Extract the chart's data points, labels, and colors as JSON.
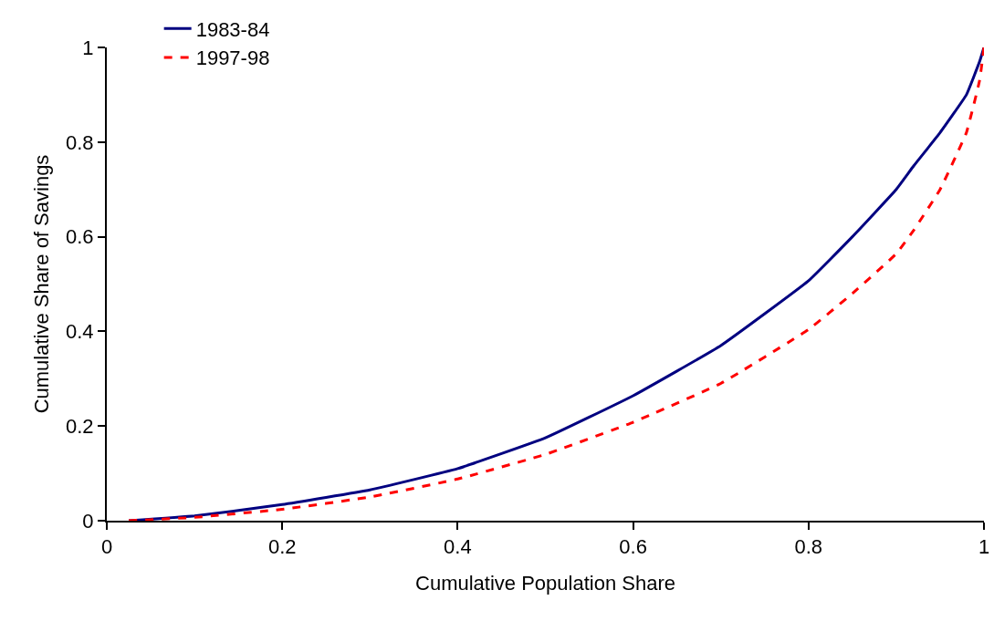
{
  "chart_data": {
    "type": "line",
    "xlabel": "Cumulative Population Share",
    "ylabel": "Cumulative Share of Savings",
    "x": [
      0.025,
      0.1,
      0.2,
      0.3,
      0.4,
      0.5,
      0.6,
      0.7,
      0.8,
      0.85,
      0.9,
      0.92,
      0.95,
      0.98,
      0.995,
      1
    ],
    "series": [
      {
        "name": "1983-84",
        "color": "#000080",
        "line_style": "solid",
        "values": [
          0,
          0.01,
          0.034,
          0.065,
          0.11,
          0.175,
          0.264,
          0.37,
          0.507,
          0.6,
          0.7,
          0.75,
          0.82,
          0.9,
          0.97,
          1
        ]
      },
      {
        "name": "1997-98",
        "color": "#ff0000",
        "line_style": "dashed",
        "values": [
          0,
          0.007,
          0.024,
          0.05,
          0.088,
          0.14,
          0.208,
          0.29,
          0.404,
          0.48,
          0.564,
          0.614,
          0.7,
          0.82,
          0.93,
          1
        ]
      }
    ],
    "xlim": [
      0,
      1
    ],
    "xticks": [
      0,
      0.2,
      0.4,
      0.6,
      0.8,
      1
    ],
    "ylim": [
      0,
      1
    ],
    "yticks": [
      0,
      0.2,
      0.4,
      0.6,
      0.8,
      1
    ],
    "grid": false,
    "legend": "top left",
    "marker": "none"
  }
}
